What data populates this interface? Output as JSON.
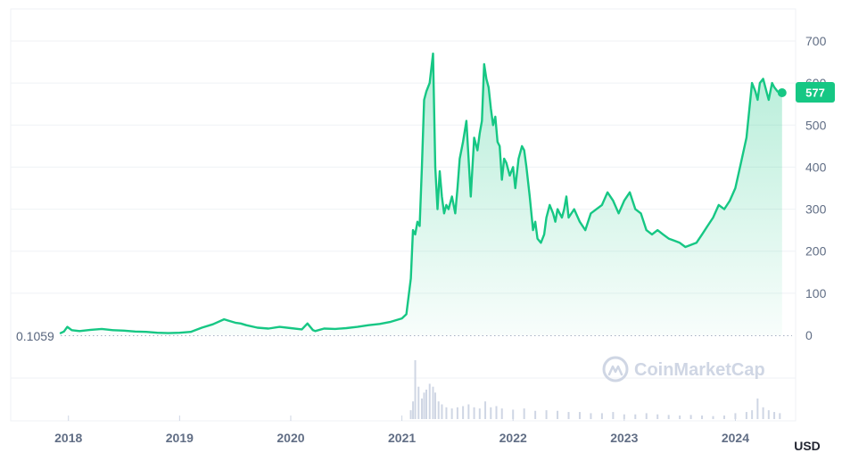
{
  "chart_data": {
    "type": "area",
    "currency": "USD",
    "start_value_label": "0.1059",
    "current_value_label": "577",
    "colors": {
      "line": "#16c784",
      "fill_top": "#16c784",
      "grid": "#eff2f5",
      "volume": "#cfd6e4",
      "axis_text": "#616e85",
      "baseline_dots": "#a6b0c3"
    },
    "x_ticks": [
      "2018",
      "2019",
      "2020",
      "2021",
      "2022",
      "2023",
      "2024"
    ],
    "y_ticks": [
      "0",
      "100",
      "200",
      "300",
      "400",
      "500",
      "600",
      "700"
    ],
    "ylim": [
      0,
      780
    ],
    "xlim": [
      2017.93,
      2024.51
    ],
    "series": [
      {
        "x": [
          2017.93,
          2017.96,
          2017.99,
          2018.03,
          2018.1,
          2018.2,
          2018.3,
          2018.4,
          2018.5,
          2018.6,
          2018.7,
          2018.8,
          2018.9,
          2019.0,
          2019.1,
          2019.2,
          2019.3,
          2019.4,
          2019.45,
          2019.5,
          2019.55,
          2019.6,
          2019.7,
          2019.8,
          2019.9,
          2020.0,
          2020.1,
          2020.15,
          2020.2,
          2020.22,
          2020.3,
          2020.4,
          2020.5,
          2020.6,
          2020.7,
          2020.8,
          2020.9,
          2021.0,
          2021.04,
          2021.08,
          2021.1,
          2021.12,
          2021.14,
          2021.16,
          2021.18,
          2021.2,
          2021.22,
          2021.25,
          2021.28,
          2021.3,
          2021.32,
          2021.34,
          2021.36,
          2021.38,
          2021.4,
          2021.42,
          2021.45,
          2021.48,
          2021.5,
          2021.52,
          2021.55,
          2021.58,
          2021.62,
          2021.65,
          2021.68,
          2021.7,
          2021.72,
          2021.74,
          2021.76,
          2021.78,
          2021.8,
          2021.82,
          2021.84,
          2021.86,
          2021.88,
          2021.9,
          2021.92,
          2021.94,
          2021.97,
          2022.0,
          2022.02,
          2022.05,
          2022.08,
          2022.1,
          2022.12,
          2022.15,
          2022.18,
          2022.2,
          2022.22,
          2022.25,
          2022.28,
          2022.3,
          2022.33,
          2022.36,
          2022.38,
          2022.4,
          2022.42,
          2022.44,
          2022.46,
          2022.48,
          2022.5,
          2022.55,
          2022.6,
          2022.65,
          2022.7,
          2022.75,
          2022.8,
          2022.85,
          2022.9,
          2022.95,
          2023.0,
          2023.05,
          2023.1,
          2023.15,
          2023.2,
          2023.25,
          2023.3,
          2023.35,
          2023.4,
          2023.45,
          2023.5,
          2023.55,
          2023.6,
          2023.65,
          2023.7,
          2023.75,
          2023.8,
          2023.85,
          2023.9,
          2023.95,
          2024.0,
          2024.05,
          2024.1,
          2024.15,
          2024.18,
          2024.2,
          2024.22,
          2024.25,
          2024.28,
          2024.3,
          2024.33,
          2024.35,
          2024.38,
          2024.4,
          2024.42
        ],
        "y": [
          5,
          9,
          20,
          12,
          10,
          13,
          15,
          12,
          11,
          9,
          8,
          6,
          5,
          6,
          8,
          18,
          26,
          38,
          34,
          30,
          28,
          24,
          18,
          16,
          20,
          17,
          14,
          28,
          12,
          10,
          16,
          15,
          17,
          20,
          24,
          27,
          32,
          40,
          50,
          135,
          250,
          240,
          270,
          260,
          400,
          560,
          580,
          600,
          670,
          400,
          300,
          390,
          330,
          290,
          310,
          300,
          330,
          290,
          350,
          420,
          460,
          510,
          330,
          470,
          440,
          480,
          510,
          645,
          610,
          590,
          540,
          500,
          520,
          460,
          450,
          370,
          420,
          410,
          380,
          400,
          350,
          420,
          450,
          440,
          400,
          330,
          250,
          270,
          230,
          220,
          240,
          280,
          310,
          290,
          270,
          300,
          290,
          280,
          300,
          330,
          280,
          300,
          270,
          250,
          290,
          300,
          310,
          340,
          320,
          290,
          320,
          340,
          300,
          290,
          250,
          240,
          250,
          240,
          230,
          225,
          220,
          210,
          215,
          220,
          240,
          260,
          280,
          310,
          300,
          320,
          350,
          410,
          470,
          600,
          580,
          560,
          600,
          610,
          580,
          560,
          600,
          590,
          580,
          577,
          577
        ]
      }
    ],
    "volume": {
      "x": [
        2021.08,
        2021.1,
        2021.12,
        2021.15,
        2021.18,
        2021.2,
        2021.22,
        2021.25,
        2021.28,
        2021.3,
        2021.33,
        2021.36,
        2021.4,
        2021.45,
        2021.5,
        2021.55,
        2021.6,
        2021.65,
        2021.7,
        2021.75,
        2021.8,
        2021.85,
        2021.9,
        2022.0,
        2022.1,
        2022.2,
        2022.3,
        2022.4,
        2022.5,
        2022.6,
        2022.7,
        2022.8,
        2022.9,
        2023.0,
        2023.1,
        2023.2,
        2023.3,
        2023.4,
        2023.5,
        2023.6,
        2023.7,
        2023.8,
        2023.9,
        2024.0,
        2024.1,
        2024.15,
        2024.2,
        2024.25,
        2024.3,
        2024.35,
        2024.4
      ],
      "values": [
        0.15,
        0.3,
        1.0,
        0.55,
        0.35,
        0.45,
        0.5,
        0.6,
        0.55,
        0.45,
        0.3,
        0.25,
        0.2,
        0.18,
        0.2,
        0.22,
        0.25,
        0.2,
        0.18,
        0.3,
        0.2,
        0.22,
        0.18,
        0.16,
        0.18,
        0.14,
        0.15,
        0.14,
        0.12,
        0.12,
        0.1,
        0.1,
        0.12,
        0.08,
        0.08,
        0.1,
        0.08,
        0.07,
        0.06,
        0.07,
        0.06,
        0.05,
        0.06,
        0.1,
        0.12,
        0.15,
        0.35,
        0.2,
        0.15,
        0.12,
        0.1
      ]
    },
    "xlabel": "",
    "ylabel": "",
    "grid": true
  },
  "watermark": {
    "brand": "CoinMarketCap"
  },
  "axis": {
    "unit": "USD"
  }
}
